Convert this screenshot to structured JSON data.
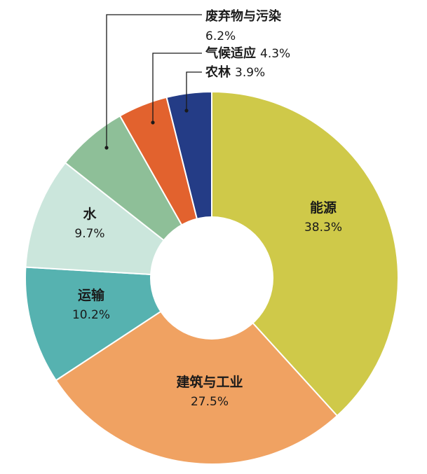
{
  "chart_data": {
    "type": "pie",
    "variant": "donut",
    "title": "",
    "slices": [
      {
        "name": "能源",
        "value": 38.3,
        "label": "38.3%",
        "color": "#CFC949",
        "label_style": "inside"
      },
      {
        "name": "建筑与工业",
        "value": 27.5,
        "label": "27.5%",
        "color": "#F0A262",
        "label_style": "inside"
      },
      {
        "name": "运输",
        "value": 10.2,
        "label": "10.2%",
        "color": "#56B2B0",
        "label_style": "inside"
      },
      {
        "name": "水",
        "value": 9.7,
        "label": "9.7%",
        "color": "#CBE6DC",
        "label_style": "inside"
      },
      {
        "name": "废弃物与污染",
        "value": 6.2,
        "label": "6.2%",
        "color": "#8EBF98",
        "label_style": "outside-two-line"
      },
      {
        "name": "气候适应",
        "value": 4.3,
        "label": "4.3%",
        "color": "#E2622E",
        "label_style": "outside-inline"
      },
      {
        "name": "农林",
        "value": 3.9,
        "label": "3.9%",
        "color": "#243C86",
        "label_style": "outside-inline"
      }
    ],
    "start_angle": "12 o'clock",
    "direction": "clockwise"
  }
}
